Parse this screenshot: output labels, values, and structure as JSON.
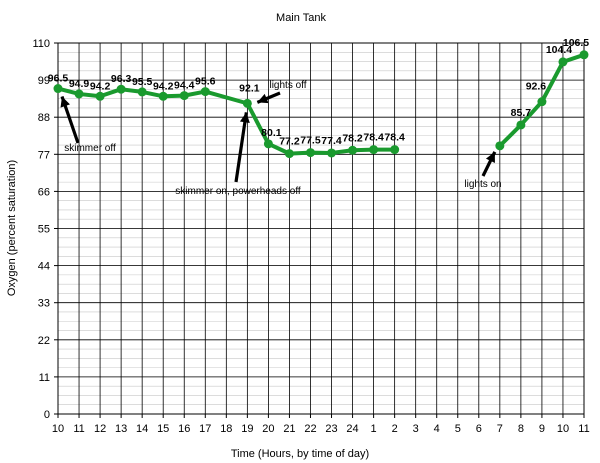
{
  "chart_data": {
    "type": "line",
    "title": "Main Tank",
    "xlabel": "Time (Hours, by time of day)",
    "ylabel": "Oxygen (percent saturation)",
    "ylim": [
      0,
      110
    ],
    "y_ticks": [
      "0",
      "11",
      "22",
      "33",
      "44",
      "55",
      "66",
      "77",
      "88",
      "99",
      "110"
    ],
    "y_minor_step": 2.75,
    "x_ticks": [
      "10",
      "11",
      "12",
      "13",
      "14",
      "15",
      "16",
      "17",
      "18",
      "19",
      "20",
      "21",
      "22",
      "23",
      "24",
      "1",
      "2",
      "3",
      "4",
      "5",
      "6",
      "7",
      "8",
      "9",
      "10",
      "11"
    ],
    "grid": true,
    "line_color": "#1a9a2e",
    "series": [
      {
        "segments": [
          [
            {
              "x": 0,
              "y": 96.5,
              "label": "96.5"
            },
            {
              "x": 1,
              "y": 94.9,
              "label": "94.9"
            },
            {
              "x": 2,
              "y": 94.2,
              "label": "94.2"
            },
            {
              "x": 3,
              "y": 96.3,
              "label": "96.3"
            },
            {
              "x": 4,
              "y": 95.5,
              "label": "95.5"
            },
            {
              "x": 5,
              "y": 94.2,
              "label": "94.2"
            },
            {
              "x": 6,
              "y": 94.4,
              "label": "94.4"
            },
            {
              "x": 7,
              "y": 95.6,
              "label": "95.6"
            },
            {
              "x": 9,
              "y": 92.1,
              "label": "92.1"
            },
            {
              "x": 10,
              "y": 80.1,
              "label": "80.1"
            },
            {
              "x": 11,
              "y": 77.2,
              "label": "77.2"
            },
            {
              "x": 12,
              "y": 77.5,
              "label": "77.5"
            },
            {
              "x": 13,
              "y": 77.4,
              "label": "77.4"
            },
            {
              "x": 14,
              "y": 78.2,
              "label": "78.2"
            },
            {
              "x": 15,
              "y": 78.4,
              "label": "78.4"
            },
            {
              "x": 16,
              "y": 78.4,
              "label": "78.4"
            }
          ],
          [
            {
              "x": 21,
              "y": 79.5,
              "label": ""
            },
            {
              "x": 22,
              "y": 85.7,
              "label": "85.7"
            },
            {
              "x": 23,
              "y": 92.6,
              "label": "92.6"
            },
            {
              "x": 24,
              "y": 104.4,
              "label": "104.4"
            },
            {
              "x": 25,
              "y": 106.5,
              "label": "106.5"
            }
          ]
        ]
      }
    ],
    "annotations": [
      {
        "text": "skimmer off",
        "x": 0,
        "y": 96.5
      },
      {
        "text": "skimmer on, powerheads off",
        "x": 9,
        "y": 92.1
      },
      {
        "text": "lights off",
        "x": 9,
        "y": 92.1
      },
      {
        "text": "lights on",
        "x": 21,
        "y": 79.5
      }
    ]
  }
}
